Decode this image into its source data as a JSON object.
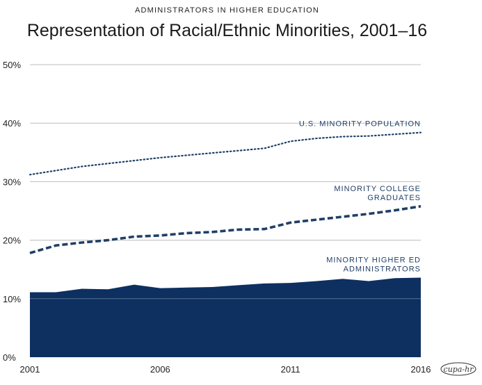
{
  "supertitle": "ADMINISTRATORS IN HIGHER EDUCATION",
  "logo_text": "cupa-hr",
  "chart_data": {
    "type": "area",
    "title": "Representation of Racial/Ethnic Minorities, 2001–16",
    "xlabel": "",
    "ylabel": "",
    "x": [
      2001,
      2002,
      2003,
      2004,
      2005,
      2006,
      2007,
      2008,
      2009,
      2010,
      2011,
      2012,
      2013,
      2014,
      2015,
      2016
    ],
    "xlim": [
      2001,
      2016
    ],
    "ylim": [
      0,
      50
    ],
    "x_ticks": [
      "2001",
      "2006",
      "2011",
      "2016"
    ],
    "y_ticks": [
      "0%",
      "10%",
      "20%",
      "30%",
      "40%",
      "50%"
    ],
    "grid": true,
    "legend": "inline labels",
    "series": [
      {
        "name": "U.S. MINORITY POPULATION",
        "style": "dotted",
        "color": "#1f3f66",
        "label_lines": [
          "U.S. MINORITY POPULATION"
        ],
        "values": [
          31.2,
          31.9,
          32.6,
          33.1,
          33.6,
          34.1,
          34.5,
          34.9,
          35.3,
          35.7,
          36.9,
          37.4,
          37.7,
          37.8,
          38.1,
          38.4
        ]
      },
      {
        "name": "MINORITY COLLEGE GRADUATES",
        "style": "dashed",
        "color": "#1f3f66",
        "label_lines": [
          "MINORITY COLLEGE",
          "GRADUATES"
        ],
        "values": [
          17.8,
          19.1,
          19.6,
          20.0,
          20.6,
          20.8,
          21.2,
          21.4,
          21.8,
          21.9,
          23.0,
          23.5,
          24.0,
          24.5,
          25.1,
          25.8
        ]
      },
      {
        "name": "MINORITY HIGHER ED ADMINISTRATORS",
        "style": "area",
        "color": "#0d3060",
        "label_lines": [
          "MINORITY HIGHER ED",
          "ADMINISTRATORS"
        ],
        "values": [
          11.1,
          11.1,
          11.7,
          11.6,
          12.4,
          11.8,
          11.9,
          12.0,
          12.3,
          12.6,
          12.7,
          13.0,
          13.4,
          13.0,
          13.5,
          13.6
        ]
      }
    ]
  }
}
